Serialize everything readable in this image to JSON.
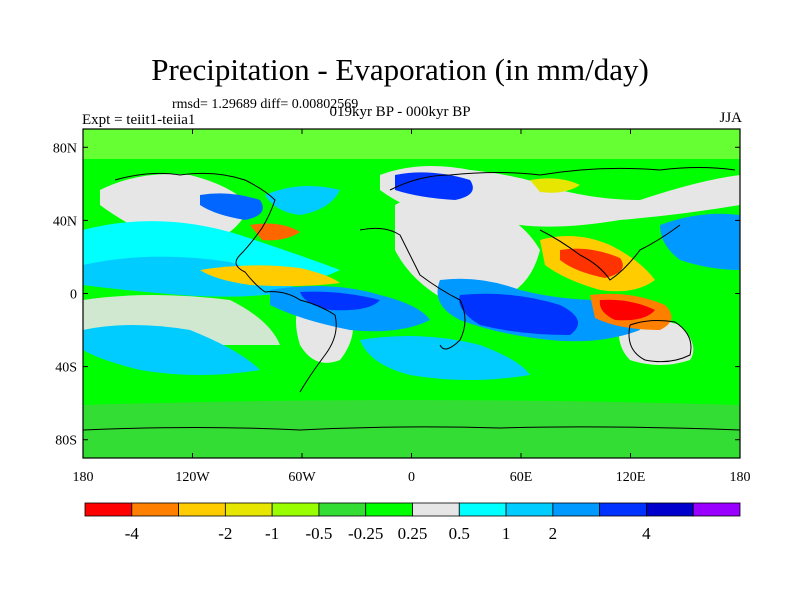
{
  "title": "Precipitation - Evaporation (in mm/day)",
  "stats": "rmsd= 1.29689  diff= 0.00802569",
  "experiment": "Expt = teiit1-teiia1",
  "period": "019kyr BP - 000kyr BP",
  "season": "JJA",
  "chart_data": {
    "type": "heatmap",
    "projection": "cylindrical-equidistant",
    "x_range": [
      -180,
      180
    ],
    "y_range": [
      -90,
      90
    ],
    "x_tick_labels": [
      "180",
      "120W",
      "60W",
      "0",
      "60E",
      "120E",
      "180"
    ],
    "y_tick_labels": [
      "80N",
      "40N",
      "0",
      "40S",
      "80S"
    ],
    "colorbar": {
      "colors": [
        "#ff0000",
        "#ff8000",
        "#ffcc00",
        "#e6e600",
        "#99ff00",
        "#33dd33",
        "#00ff00",
        "#e6e6e6",
        "#00ffff",
        "#00ccff",
        "#0099ff",
        "#0033ff",
        "#0000cc",
        "#9900ff"
      ],
      "labels": [
        "-4",
        "-2",
        "-1",
        "-0.5",
        "-0.25",
        "0.25",
        "0.5",
        "1",
        "2",
        "4"
      ]
    }
  }
}
